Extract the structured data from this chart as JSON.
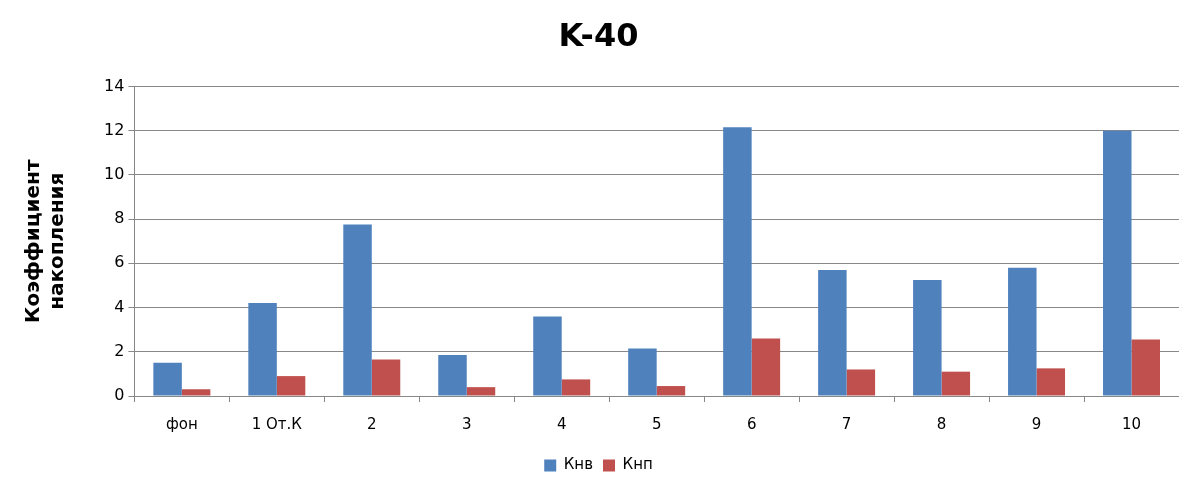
{
  "chart_data": {
    "type": "bar",
    "title": "K-40",
    "ylabel": "Коэффициент накопления",
    "categories": [
      "фон",
      "1 От.К",
      "2",
      "3",
      "4",
      "5",
      "6",
      "7",
      "8",
      "9",
      "10"
    ],
    "series": [
      {
        "name": "Кнв",
        "color": "#4f81bd",
        "values": [
          1.5,
          4.2,
          7.75,
          1.85,
          3.6,
          2.15,
          12.15,
          5.7,
          5.25,
          5.8,
          12.0
        ]
      },
      {
        "name": "Кнп",
        "color": "#c0504d",
        "values": [
          0.3,
          0.9,
          1.65,
          0.4,
          0.75,
          0.45,
          2.6,
          1.2,
          1.1,
          1.25,
          2.55
        ]
      }
    ],
    "ylim": [
      0,
      14
    ],
    "yticks": [
      0,
      2,
      4,
      6,
      8,
      10,
      12,
      14
    ],
    "grid": "y",
    "legend": "bottom"
  }
}
